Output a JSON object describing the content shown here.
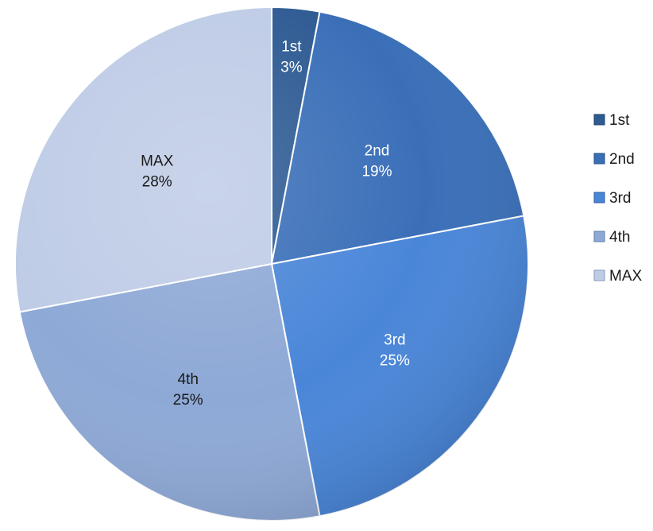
{
  "chart_data": {
    "type": "pie",
    "categories": [
      "1st",
      "2nd",
      "3rd",
      "4th",
      "MAX"
    ],
    "values": [
      3,
      19,
      25,
      25,
      28
    ],
    "value_labels": [
      "3%",
      "19%",
      "25%",
      "25%",
      "28%"
    ],
    "unit": "%",
    "title": "",
    "legend_placement": "right",
    "colors": [
      "#2e5b93",
      "#3a6fb8",
      "#4a86d8",
      "#8ea9d6",
      "#bfcce6"
    ],
    "edge_colors": [
      "#1f3f66",
      "#284f83",
      "#2f5f9e",
      "#5f7ea8",
      "#8597b8"
    ],
    "label_colors": [
      "#ffffff",
      "#ffffff",
      "#ffffff",
      "#1a1a1a",
      "#1a1a1a"
    ]
  }
}
